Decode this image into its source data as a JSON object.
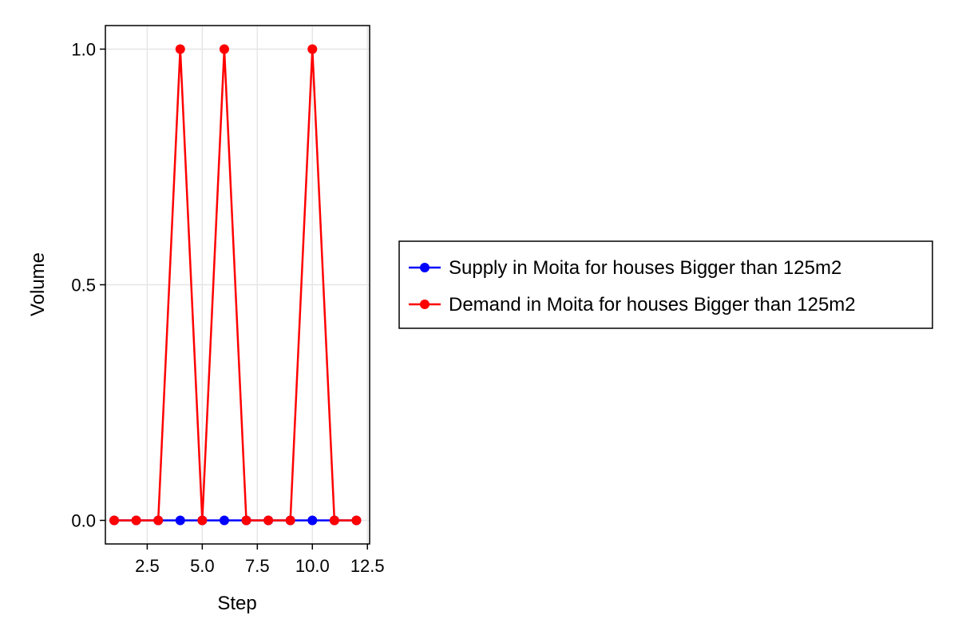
{
  "chart_data": {
    "type": "line",
    "xlabel": "Step",
    "ylabel": "Volume",
    "xlim": [
      0.6,
      12.6
    ],
    "ylim": [
      -0.05,
      1.05
    ],
    "xticks": [
      2.5,
      5.0,
      7.5,
      10.0,
      12.5
    ],
    "xtick_labels": [
      "2.5",
      "5.0",
      "7.5",
      "10.0",
      "12.5"
    ],
    "yticks": [
      0.0,
      0.5,
      1.0
    ],
    "ytick_labels": [
      "0.0",
      "0.5",
      "1.0"
    ],
    "grid": true,
    "legend_position": "right",
    "x": [
      1,
      2,
      3,
      4,
      5,
      6,
      7,
      8,
      9,
      10,
      11,
      12
    ],
    "series": [
      {
        "name": "Supply in Moita for houses Bigger than 125m2",
        "color": "#0000ff",
        "values": [
          0,
          0,
          0,
          0,
          0,
          0,
          0,
          0,
          0,
          0,
          0,
          0
        ]
      },
      {
        "name": "Demand in Moita for houses Bigger than 125m2",
        "color": "#ff0000",
        "values": [
          0,
          0,
          0,
          1,
          0,
          1,
          0,
          0,
          0,
          1,
          0,
          0
        ]
      }
    ]
  }
}
